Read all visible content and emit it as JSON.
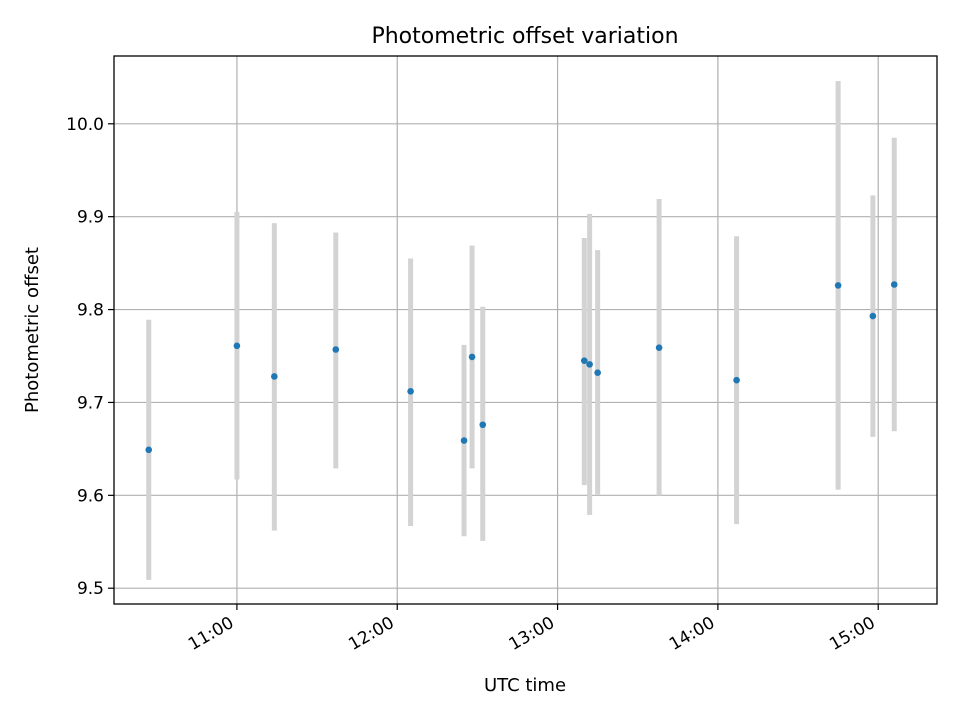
{
  "chart_data": {
    "type": "scatter",
    "title": "Photometric offset variation",
    "xlabel": "UTC time",
    "ylabel": "Photometric offset",
    "x_axis_type": "time",
    "xlim": [
      "10:14",
      "15:22"
    ],
    "ylim": [
      9.483,
      10.073
    ],
    "x_ticks": [
      "11:00",
      "12:00",
      "13:00",
      "14:00",
      "15:00"
    ],
    "y_ticks": [
      9.5,
      9.6,
      9.7,
      9.8,
      9.9,
      10.0
    ],
    "y_tick_labels": [
      "9.5",
      "9.6",
      "9.7",
      "9.8",
      "9.9",
      "10.0"
    ],
    "grid": true,
    "marker_color": "#1f77b4",
    "errorbar_color": "#d3d3d3",
    "series": [
      {
        "points": [
          {
            "x": "10:27",
            "y": 9.649,
            "y_low": 9.509,
            "y_high": 9.789
          },
          {
            "x": "11:00",
            "y": 9.761,
            "y_low": 9.617,
            "y_high": 9.905
          },
          {
            "x": "11:14",
            "y": 9.728,
            "y_low": 9.562,
            "y_high": 9.893
          },
          {
            "x": "11:37",
            "y": 9.757,
            "y_low": 9.629,
            "y_high": 9.883
          },
          {
            "x": "12:05",
            "y": 9.712,
            "y_low": 9.567,
            "y_high": 9.855
          },
          {
            "x": "12:25",
            "y": 9.659,
            "y_low": 9.556,
            "y_high": 9.762
          },
          {
            "x": "12:28",
            "y": 9.749,
            "y_low": 9.629,
            "y_high": 9.869
          },
          {
            "x": "12:32",
            "y": 9.676,
            "y_low": 9.551,
            "y_high": 9.803
          },
          {
            "x": "13:10",
            "y": 9.745,
            "y_low": 9.611,
            "y_high": 9.877
          },
          {
            "x": "13:12",
            "y": 9.741,
            "y_low": 9.579,
            "y_high": 9.903
          },
          {
            "x": "13:15",
            "y": 9.732,
            "y_low": 9.601,
            "y_high": 9.864
          },
          {
            "x": "13:38",
            "y": 9.759,
            "y_low": 9.6,
            "y_high": 9.919
          },
          {
            "x": "14:07",
            "y": 9.724,
            "y_low": 9.569,
            "y_high": 9.879
          },
          {
            "x": "14:45",
            "y": 9.826,
            "y_low": 9.606,
            "y_high": 10.046
          },
          {
            "x": "14:58",
            "y": 9.793,
            "y_low": 9.663,
            "y_high": 9.923
          },
          {
            "x": "15:06",
            "y": 9.827,
            "y_low": 9.669,
            "y_high": 9.985
          }
        ]
      }
    ]
  }
}
